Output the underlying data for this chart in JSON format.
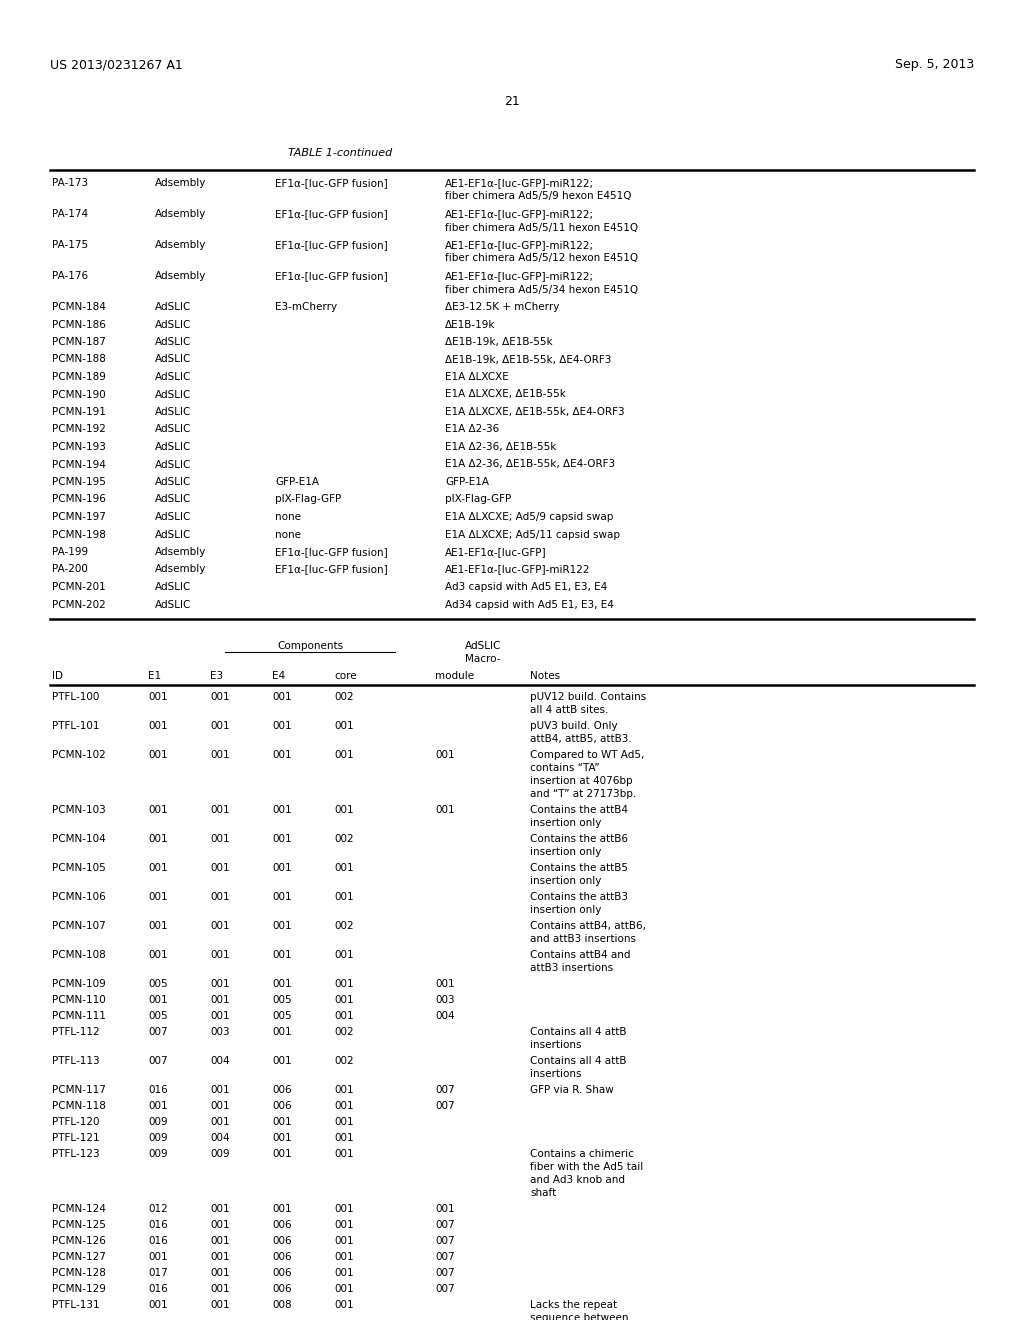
{
  "header_left": "US 2013/0231267 A1",
  "header_right": "Sep. 5, 2013",
  "page_number": "21",
  "table_title": "TABLE 1-continued",
  "background_color": "#ffffff",
  "text_color": "#000000",
  "font_size": 7.5,
  "table1_rows": [
    [
      "PA-173",
      "Adsembly",
      "EF1α-[luc-GFP fusion]",
      "AE1-EF1α-[luc-GFP]-miR122;\nfiber chimera Ad5/5/9 hexon E451Q"
    ],
    [
      "PA-174",
      "Adsembly",
      "EF1α-[luc-GFP fusion]",
      "AE1-EF1α-[luc-GFP]-miR122;\nfiber chimera Ad5/5/11 hexon E451Q"
    ],
    [
      "PA-175",
      "Adsembly",
      "EF1α-[luc-GFP fusion]",
      "AE1-EF1α-[luc-GFP]-miR122;\nfiber chimera Ad5/5/12 hexon E451Q"
    ],
    [
      "PA-176",
      "Adsembly",
      "EF1α-[luc-GFP fusion]",
      "AE1-EF1α-[luc-GFP]-miR122;\nfiber chimera Ad5/5/34 hexon E451Q"
    ],
    [
      "PCMN-184",
      "AdSLIC",
      "E3-mCherry",
      "ΔE3-12.5K + mCherry"
    ],
    [
      "PCMN-186",
      "AdSLIC",
      "",
      "ΔE1B-19k"
    ],
    [
      "PCMN-187",
      "AdSLIC",
      "",
      "ΔE1B-19k, ΔE1B-55k"
    ],
    [
      "PCMN-188",
      "AdSLIC",
      "",
      "ΔE1B-19k, ΔE1B-55k, ΔE4-ORF3"
    ],
    [
      "PCMN-189",
      "AdSLIC",
      "",
      "E1A ΔLXCXE"
    ],
    [
      "PCMN-190",
      "AdSLIC",
      "",
      "E1A ΔLXCXE, ΔE1B-55k"
    ],
    [
      "PCMN-191",
      "AdSLIC",
      "",
      "E1A ΔLXCXE, ΔE1B-55k, ΔE4-ORF3"
    ],
    [
      "PCMN-192",
      "AdSLIC",
      "",
      "E1A Δ2-36"
    ],
    [
      "PCMN-193",
      "AdSLIC",
      "",
      "E1A Δ2-36, ΔE1B-55k"
    ],
    [
      "PCMN-194",
      "AdSLIC",
      "",
      "E1A Δ2-36, ΔE1B-55k, ΔE4-ORF3"
    ],
    [
      "PCMN-195",
      "AdSLIC",
      "GFP-E1A",
      "GFP-E1A"
    ],
    [
      "PCMN-196",
      "AdSLIC",
      "pIX-Flag-GFP",
      "pIX-Flag-GFP"
    ],
    [
      "PCMN-197",
      "AdSLIC",
      "none",
      "E1A ΔLXCXE; Ad5/9 capsid swap"
    ],
    [
      "PCMN-198",
      "AdSLIC",
      "none",
      "E1A ΔLXCXE; Ad5/11 capsid swap"
    ],
    [
      "PA-199",
      "Adsembly",
      "EF1α-[luc-GFP fusion]",
      "AE1-EF1α-[luc-GFP]"
    ],
    [
      "PA-200",
      "Adsembly",
      "EF1α-[luc-GFP fusion]",
      "AE1-EF1α-[luc-GFP]-miR122"
    ],
    [
      "PCMN-201",
      "AdSLIC",
      "",
      "Ad3 capsid with Ad5 E1, E3, E4"
    ],
    [
      "PCMN-202",
      "AdSLIC",
      "",
      "Ad34 capsid with Ad5 E1, E3, E4"
    ]
  ],
  "table2_col_headers": [
    "ID",
    "E1",
    "E3",
    "E4",
    "core",
    "module",
    "Notes"
  ],
  "table2_rows": [
    [
      "PTFL-100",
      "001",
      "001",
      "001",
      "002",
      "",
      "pUV12 build. Contains\nall 4 attB sites."
    ],
    [
      "PTFL-101",
      "001",
      "001",
      "001",
      "001",
      "",
      "pUV3 build. Only\nattB4, attB5, attB3."
    ],
    [
      "PCMN-102",
      "001",
      "001",
      "001",
      "001",
      "001",
      "Compared to WT Ad5,\ncontains “TA”\ninsertion at 4076bp\nand “T” at 27173bp."
    ],
    [
      "PCMN-103",
      "001",
      "001",
      "001",
      "001",
      "001",
      "Contains the attB4\ninsertion only"
    ],
    [
      "PCMN-104",
      "001",
      "001",
      "001",
      "002",
      "",
      "Contains the attB6\ninsertion only"
    ],
    [
      "PCMN-105",
      "001",
      "001",
      "001",
      "001",
      "",
      "Contains the attB5\ninsertion only"
    ],
    [
      "PCMN-106",
      "001",
      "001",
      "001",
      "001",
      "",
      "Contains the attB3\ninsertion only"
    ],
    [
      "PCMN-107",
      "001",
      "001",
      "001",
      "002",
      "",
      "Contains attB4, attB6,\nand attB3 insertions"
    ],
    [
      "PCMN-108",
      "001",
      "001",
      "001",
      "001",
      "",
      "Contains attB4 and\nattB3 insertions"
    ],
    [
      "PCMN-109",
      "005",
      "001",
      "001",
      "001",
      "001",
      ""
    ],
    [
      "PCMN-110",
      "001",
      "001",
      "005",
      "001",
      "003",
      ""
    ],
    [
      "PCMN-111",
      "005",
      "001",
      "005",
      "001",
      "004",
      ""
    ],
    [
      "PTFL-112",
      "007",
      "003",
      "001",
      "002",
      "",
      "Contains all 4 attB\ninsertions"
    ],
    [
      "PTFL-113",
      "007",
      "004",
      "001",
      "002",
      "",
      "Contains all 4 attB\ninsertions"
    ],
    [
      "PCMN-117",
      "016",
      "001",
      "006",
      "001",
      "007",
      "GFP via R. Shaw"
    ],
    [
      "PCMN-118",
      "001",
      "001",
      "006",
      "001",
      "007",
      ""
    ],
    [
      "PTFL-120",
      "009",
      "001",
      "001",
      "001",
      "",
      ""
    ],
    [
      "PTFL-121",
      "009",
      "004",
      "001",
      "001",
      "",
      ""
    ],
    [
      "PTFL-123",
      "009",
      "009",
      "001",
      "001",
      "",
      "Contains a chimeric\nfiber with the Ad5 tail\nand Ad3 knob and\nshaft"
    ],
    [
      "PCMN-124",
      "012",
      "001",
      "001",
      "001",
      "001",
      ""
    ],
    [
      "PCMN-125",
      "016",
      "001",
      "006",
      "001",
      "007",
      ""
    ],
    [
      "PCMN-126",
      "016",
      "001",
      "006",
      "001",
      "007",
      ""
    ],
    [
      "PCMN-127",
      "001",
      "001",
      "006",
      "001",
      "007",
      ""
    ],
    [
      "PCMN-128",
      "017",
      "001",
      "006",
      "001",
      "007",
      ""
    ],
    [
      "PCMN-129",
      "016",
      "001",
      "006",
      "001",
      "007",
      ""
    ],
    [
      "PTFL-131",
      "001",
      "001",
      "008",
      "001",
      "",
      "Lacks the repeat\nsequence between"
    ]
  ]
}
